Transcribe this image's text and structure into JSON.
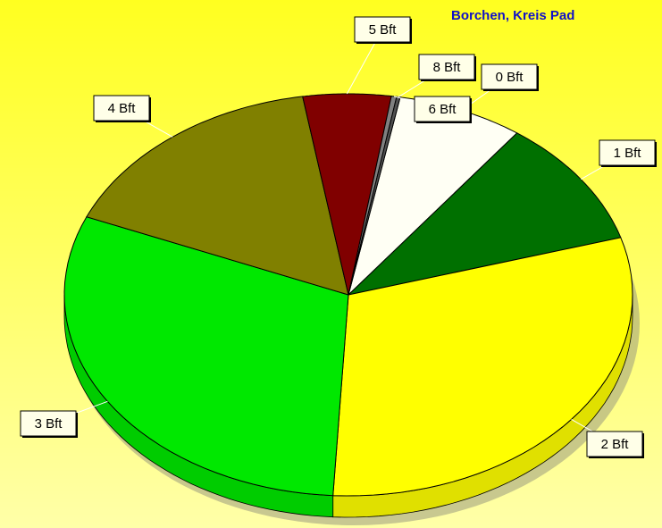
{
  "chart_data": {
    "type": "pie",
    "title": "Borchen, Kreis Pad",
    "categories": [
      "0 Bft",
      "1 Bft",
      "2 Bft",
      "3 Bft",
      "4 Bft",
      "5 Bft",
      "6 Bft",
      "8 Bft"
    ],
    "values": [
      7.2,
      10.3,
      30.5,
      30.5,
      16.1,
      5,
      0.3,
      0.2
    ],
    "colors": [
      "#fffff4",
      "#007000",
      "#ffff00",
      "#00e800",
      "#808000",
      "#800000",
      "#808080",
      "#505050"
    ]
  }
}
